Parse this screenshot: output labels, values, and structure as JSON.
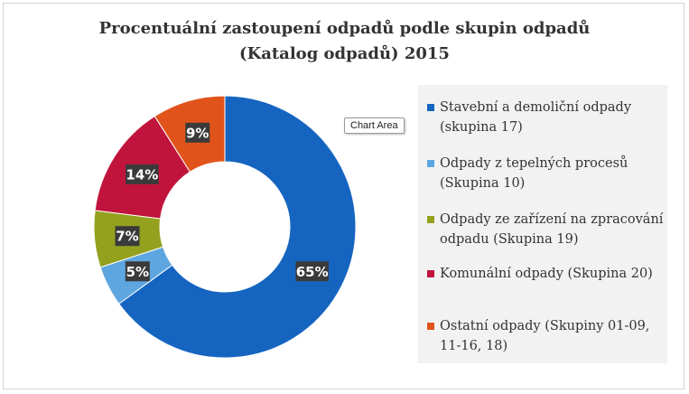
{
  "chart_data": {
    "type": "pie",
    "variant": "donut",
    "title_lines": [
      "Procentuální zastoupení odpadů podle skupin odpadů",
      "(Katalog odpadů) 2015"
    ],
    "legend_position": "right",
    "series": [
      {
        "name": "Stavební a demoliční odpady (skupina 17)",
        "value": 65,
        "label": "65%",
        "color": "#1565c0"
      },
      {
        "name": "Odpady z tepelných procesů (Skupina 10)",
        "value": 5,
        "label": "5%",
        "color": "#5ea6e0"
      },
      {
        "name": "Odpady ze zařízení na zpracování odpadu (Skupina 19)",
        "value": 7,
        "label": "7%",
        "color": "#94a11e"
      },
      {
        "name": "Komunální odpady (Skupina 20)",
        "value": 14,
        "label": "14%",
        "color": "#c0143c"
      },
      {
        "name": "Ostatní odpady (Skupiny 01-09, 11-16, 18)",
        "value": 9,
        "label": "9%",
        "color": "#e0541b"
      }
    ]
  },
  "legend": {
    "items": [
      {
        "lines": [
          "Stavební a demoliční odpady",
          "(skupina 17)"
        ]
      },
      {
        "lines": [
          "Odpady z tepelných procesů",
          "(Skupina 10)"
        ]
      },
      {
        "lines": [
          "Odpady ze zařízení na zpracování",
          "odpadu (Skupina 19)"
        ]
      },
      {
        "lines": [
          "Komunální odpady (Skupina 20)"
        ]
      },
      {
        "lines": [
          "Ostatní odpady (Skupiny 01-09,",
          "11-16, 18)"
        ]
      }
    ]
  },
  "tooltip": {
    "text": "Chart Area"
  }
}
